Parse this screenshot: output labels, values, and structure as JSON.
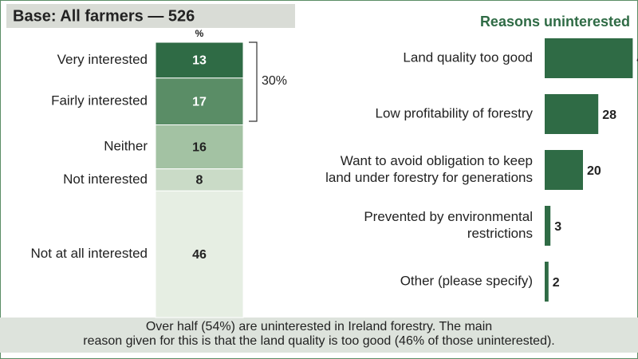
{
  "header": "Base: All farmers — 526",
  "footer": [
    "Over half (54%) are uninterested in Ireland forestry. The main",
    "reason given for this is that the land quality is too good (46% of those uninterested)."
  ],
  "chart_data": [
    {
      "type": "stacked-column",
      "unit_label": "%",
      "categories": [
        "Very interested",
        "Fairly interested",
        "Neither",
        "Not interested",
        "Not at all interested"
      ],
      "values": [
        13,
        17,
        16,
        8,
        46
      ],
      "colors": [
        "#2f6b45",
        "#5a8d66",
        "#a3c2a3",
        "#cadbc7",
        "#e6eee3"
      ],
      "annotation": "30%"
    },
    {
      "type": "hbar",
      "title": "Reasons uninterested",
      "categories": [
        [
          "Land quality too good"
        ],
        [
          "Low profitability of forestry"
        ],
        [
          "Want to avoid obligation to keep",
          "land under forestry for generations"
        ],
        [
          "Prevented by environmental",
          "restrictions"
        ],
        [
          "Other (please specify)"
        ]
      ],
      "values": [
        46,
        28,
        20,
        3,
        2
      ],
      "color": "#2f6b45"
    }
  ]
}
